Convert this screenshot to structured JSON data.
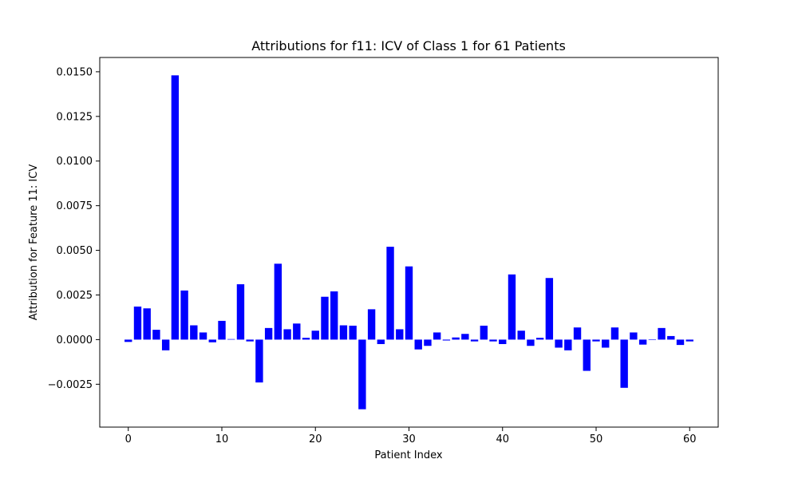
{
  "chart_data": {
    "type": "bar",
    "title": "Attributions for f11: ICV of Class 1 for 61 Patients",
    "xlabel": "Patient Index",
    "ylabel": "Attribution for Feature 11: ICV",
    "bar_color": "#0000ff",
    "xlim": [
      -3.05,
      63.05
    ],
    "ylim": [
      -0.0049,
      0.0158
    ],
    "xticks": [
      0,
      10,
      20,
      30,
      40,
      50,
      60
    ],
    "yticks": [
      -0.0025,
      0.0,
      0.0025,
      0.005,
      0.0075,
      0.01,
      0.0125,
      0.015
    ],
    "ytick_labels": [
      "−0.0025",
      "0.0000",
      "0.0025",
      "0.0050",
      "0.0075",
      "0.0100",
      "0.0125",
      "0.0150"
    ],
    "grid": false,
    "x": [
      0,
      1,
      2,
      3,
      4,
      5,
      6,
      7,
      8,
      9,
      10,
      11,
      12,
      13,
      14,
      15,
      16,
      17,
      18,
      19,
      20,
      21,
      22,
      23,
      24,
      25,
      26,
      27,
      28,
      29,
      30,
      31,
      32,
      33,
      34,
      35,
      36,
      37,
      38,
      39,
      40,
      41,
      42,
      43,
      44,
      45,
      46,
      47,
      48,
      49,
      50,
      51,
      52,
      53,
      54,
      55,
      56,
      57,
      58,
      59,
      60
    ],
    "values": [
      -0.00013,
      0.00185,
      0.00175,
      0.00055,
      -0.0006,
      0.0148,
      0.00275,
      0.0008,
      0.0004,
      -0.00015,
      0.00105,
      3e-05,
      0.0031,
      -0.0001,
      -0.0024,
      0.00065,
      0.00425,
      0.00058,
      0.0009,
      0.0001,
      0.0005,
      0.0024,
      0.0027,
      0.0008,
      0.00078,
      -0.0039,
      0.0017,
      -0.00025,
      0.0052,
      0.00058,
      0.0041,
      -0.00055,
      -0.00035,
      0.0004,
      -5e-05,
      0.00012,
      0.00032,
      -0.0001,
      0.00078,
      -0.0001,
      -0.00025,
      0.00365,
      0.0005,
      -0.00035,
      0.0001,
      0.00345,
      -0.00045,
      -0.0006,
      0.00068,
      -0.00175,
      -0.0001,
      -0.00045,
      0.00068,
      -0.0027,
      0.0004,
      -0.00028,
      0.0,
      0.00065,
      0.0002,
      -0.0003,
      -0.0001
    ]
  }
}
